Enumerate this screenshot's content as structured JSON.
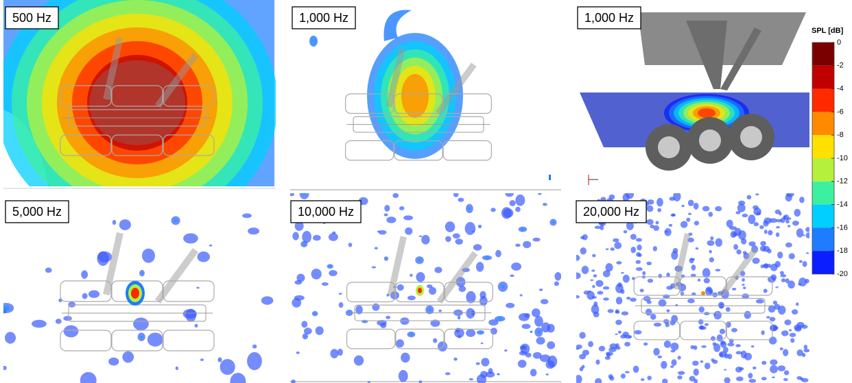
{
  "panels": [
    {
      "label": "500 Hz"
    },
    {
      "label": "1,000 Hz"
    },
    {
      "label": "1,000 Hz"
    },
    {
      "label": "5,000 Hz"
    },
    {
      "label": "10,000 Hz"
    },
    {
      "label": "20,000 Hz"
    }
  ],
  "colorbar": {
    "title": "SPL [dB]",
    "ticks": [
      0,
      -2,
      -4,
      -6,
      -8,
      -10,
      -12,
      -14,
      -16,
      -18,
      -20
    ],
    "colors": [
      "#7a0000",
      "#c00000",
      "#ff2a00",
      "#ff8a00",
      "#ffe000",
      "#b4f03c",
      "#3cf0a0",
      "#00cfff",
      "#1e7dff",
      "#0a1eff",
      "#00006e"
    ]
  }
}
